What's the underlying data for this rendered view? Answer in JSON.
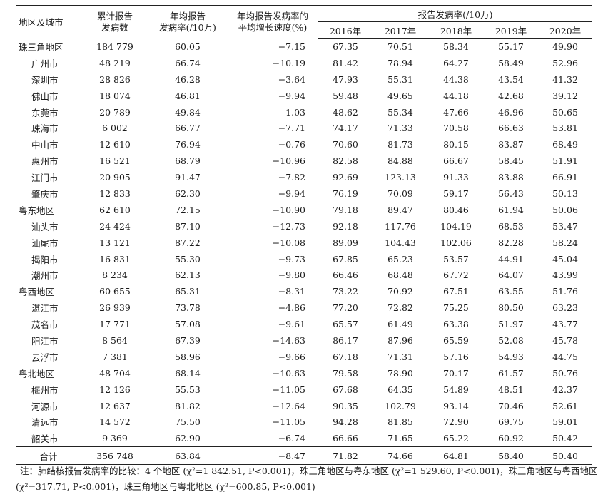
{
  "table": {
    "headers": {
      "region": "地区及城市",
      "cumulative": [
        "累计报告",
        "发病数"
      ],
      "annual_rate": [
        "年均报告",
        "发病率(/10万)"
      ],
      "growth": [
        "年均报告发病率的",
        "平均增长速度(%)"
      ],
      "rate_group": "报告发病率(/10万)",
      "years": [
        "2016年",
        "2017年",
        "2018年",
        "2019年",
        "2020年"
      ]
    },
    "rows": [
      {
        "name": "珠三角地区",
        "region": true,
        "cases": "184 779",
        "rate": "60.05",
        "growth": "−7.15",
        "years": [
          "67.35",
          "70.51",
          "58.34",
          "55.17",
          "49.90"
        ]
      },
      {
        "name": "广州市",
        "region": false,
        "cases": "48 219",
        "rate": "66.74",
        "growth": "−10.19",
        "years": [
          "81.42",
          "78.94",
          "64.27",
          "58.49",
          "52.96"
        ]
      },
      {
        "name": "深圳市",
        "region": false,
        "cases": "28 826",
        "rate": "46.28",
        "growth": "−3.64",
        "years": [
          "47.93",
          "55.31",
          "44.38",
          "43.54",
          "41.32"
        ]
      },
      {
        "name": "佛山市",
        "region": false,
        "cases": "18 074",
        "rate": "46.81",
        "growth": "−9.94",
        "years": [
          "59.48",
          "49.65",
          "44.18",
          "42.68",
          "39.12"
        ]
      },
      {
        "name": "东莞市",
        "region": false,
        "cases": "20 789",
        "rate": "49.84",
        "growth": "1.03",
        "years": [
          "48.62",
          "55.34",
          "47.66",
          "46.96",
          "50.65"
        ]
      },
      {
        "name": "珠海市",
        "region": false,
        "cases": "6 002",
        "rate": "66.77",
        "growth": "−7.71",
        "years": [
          "74.17",
          "71.33",
          "70.58",
          "66.63",
          "53.81"
        ]
      },
      {
        "name": "中山市",
        "region": false,
        "cases": "12 610",
        "rate": "76.94",
        "growth": "−0.76",
        "years": [
          "70.60",
          "81.73",
          "80.15",
          "83.87",
          "68.49"
        ]
      },
      {
        "name": "惠州市",
        "region": false,
        "cases": "16 521",
        "rate": "68.79",
        "growth": "−10.96",
        "years": [
          "82.58",
          "84.88",
          "66.67",
          "58.45",
          "51.91"
        ]
      },
      {
        "name": "江门市",
        "region": false,
        "cases": "20 905",
        "rate": "91.47",
        "growth": "−7.82",
        "years": [
          "92.69",
          "123.13",
          "91.33",
          "83.88",
          "66.91"
        ]
      },
      {
        "name": "肇庆市",
        "region": false,
        "cases": "12 833",
        "rate": "62.30",
        "growth": "−9.94",
        "years": [
          "76.19",
          "70.09",
          "59.17",
          "56.43",
          "50.13"
        ]
      },
      {
        "name": "粤东地区",
        "region": true,
        "cases": "62 610",
        "rate": "72.15",
        "growth": "−10.90",
        "years": [
          "79.18",
          "89.47",
          "80.46",
          "61.94",
          "50.06"
        ]
      },
      {
        "name": "汕头市",
        "region": false,
        "cases": "24 424",
        "rate": "87.10",
        "growth": "−12.73",
        "years": [
          "92.18",
          "117.76",
          "104.19",
          "68.53",
          "53.47"
        ]
      },
      {
        "name": "汕尾市",
        "region": false,
        "cases": "13 121",
        "rate": "87.22",
        "growth": "−10.08",
        "years": [
          "89.09",
          "104.43",
          "102.06",
          "82.28",
          "58.24"
        ]
      },
      {
        "name": "揭阳市",
        "region": false,
        "cases": "16 831",
        "rate": "55.30",
        "growth": "−9.73",
        "years": [
          "67.85",
          "65.23",
          "53.57",
          "44.91",
          "45.04"
        ]
      },
      {
        "name": "潮州市",
        "region": false,
        "cases": "8 234",
        "rate": "62.13",
        "growth": "−9.80",
        "years": [
          "66.46",
          "68.48",
          "67.72",
          "64.07",
          "43.99"
        ]
      },
      {
        "name": "粤西地区",
        "region": true,
        "cases": "60 655",
        "rate": "65.31",
        "growth": "−8.31",
        "years": [
          "73.22",
          "70.92",
          "67.51",
          "63.55",
          "51.76"
        ]
      },
      {
        "name": "湛江市",
        "region": false,
        "cases": "26 939",
        "rate": "73.78",
        "growth": "−4.86",
        "years": [
          "77.20",
          "72.82",
          "75.25",
          "80.50",
          "63.23"
        ]
      },
      {
        "name": "茂名市",
        "region": false,
        "cases": "17 771",
        "rate": "57.08",
        "growth": "−9.61",
        "years": [
          "65.57",
          "61.49",
          "63.38",
          "51.97",
          "43.77"
        ]
      },
      {
        "name": "阳江市",
        "region": false,
        "cases": "8 564",
        "rate": "67.39",
        "growth": "−14.63",
        "years": [
          "86.17",
          "87.96",
          "65.59",
          "52.08",
          "45.78"
        ]
      },
      {
        "name": "云浮市",
        "region": false,
        "cases": "7 381",
        "rate": "58.96",
        "growth": "−9.66",
        "years": [
          "67.18",
          "71.31",
          "57.16",
          "54.93",
          "44.75"
        ]
      },
      {
        "name": "粤北地区",
        "region": true,
        "cases": "48 704",
        "rate": "68.14",
        "growth": "−10.63",
        "years": [
          "79.58",
          "78.90",
          "70.17",
          "61.57",
          "50.76"
        ]
      },
      {
        "name": "梅州市",
        "region": false,
        "cases": "12 126",
        "rate": "55.53",
        "growth": "−11.05",
        "years": [
          "67.68",
          "64.35",
          "54.89",
          "48.51",
          "42.37"
        ]
      },
      {
        "name": "河源市",
        "region": false,
        "cases": "12 637",
        "rate": "81.82",
        "growth": "−12.64",
        "years": [
          "90.35",
          "102.79",
          "93.14",
          "70.46",
          "52.61"
        ]
      },
      {
        "name": "清远市",
        "region": false,
        "cases": "14 572",
        "rate": "75.50",
        "growth": "−11.05",
        "years": [
          "94.28",
          "81.85",
          "72.90",
          "69.75",
          "59.01"
        ]
      },
      {
        "name": "韶关市",
        "region": false,
        "cases": "9 369",
        "rate": "62.90",
        "growth": "−6.74",
        "years": [
          "66.66",
          "71.65",
          "65.22",
          "60.92",
          "50.42"
        ]
      }
    ],
    "total": {
      "name": "合计",
      "cases": "356 748",
      "rate": "63.84",
      "growth": "−8.47",
      "years": [
        "71.82",
        "74.66",
        "64.81",
        "58.40",
        "50.40"
      ]
    }
  },
  "note": {
    "line1": "注：肺结核报告发病率的比较：4 个地区 (χ²=1 842.51, P<0.001)，珠三角地区与粤东地区 (χ²=1 529.60, P<0.001)，珠三角地区与粤西地区",
    "line2": "(χ²=317.71, P<0.001)，珠三角地区与粤北地区 (χ²=600.85, P<0.001)"
  }
}
